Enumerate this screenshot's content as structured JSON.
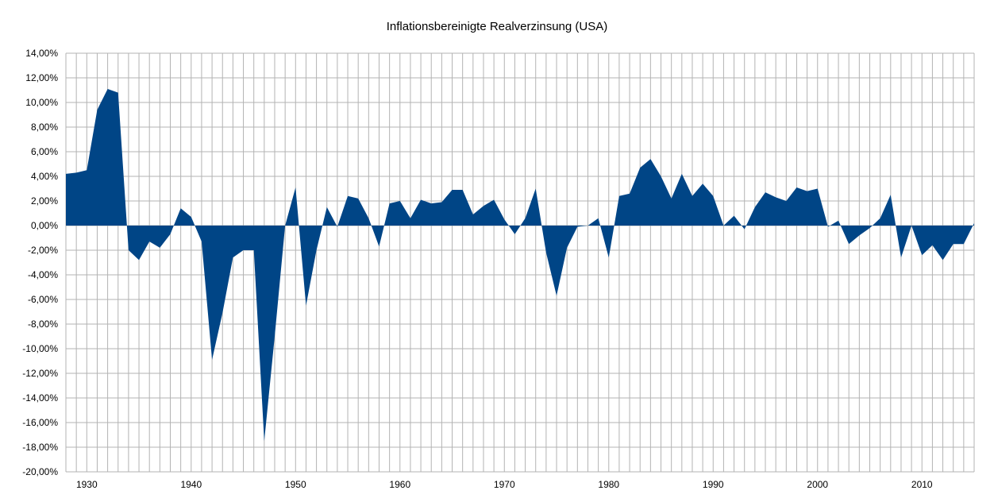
{
  "chart_data": {
    "type": "area",
    "title": "Inflationsbereinigte Realverzinsung (USA)",
    "xlabel": "",
    "ylabel": "",
    "ylim": [
      -0.2,
      0.14
    ],
    "xlim": [
      1928,
      2015
    ],
    "y_ticks": [
      0.14,
      0.12,
      0.1,
      0.08,
      0.06,
      0.04,
      0.02,
      0.0,
      -0.02,
      -0.04,
      -0.06,
      -0.08,
      -0.1,
      -0.12,
      -0.14,
      -0.16,
      -0.18,
      -0.2
    ],
    "y_tick_labels": [
      "14,00%",
      "12,00%",
      "10,00%",
      "8,00%",
      "6,00%",
      "4,00%",
      "2,00%",
      "0,00%",
      "-2,00%",
      "-4,00%",
      "-6,00%",
      "-8,00%",
      "-10,00%",
      "-12,00%",
      "-14,00%",
      "-16,00%",
      "-18,00%",
      "-20,00%"
    ],
    "x_ticks": [
      1930,
      1940,
      1950,
      1960,
      1970,
      1980,
      1990,
      2000,
      2010
    ],
    "x_tick_labels": [
      "1930",
      "1940",
      "1950",
      "1960",
      "1970",
      "1980",
      "1990",
      "2000",
      "2010"
    ],
    "grid": true,
    "series_color": "#004586",
    "x": [
      1928,
      1929,
      1930,
      1931,
      1932,
      1933,
      1934,
      1935,
      1936,
      1937,
      1938,
      1939,
      1940,
      1941,
      1942,
      1943,
      1944,
      1945,
      1946,
      1947,
      1948,
      1949,
      1950,
      1951,
      1952,
      1953,
      1954,
      1955,
      1956,
      1957,
      1958,
      1959,
      1960,
      1961,
      1962,
      1963,
      1964,
      1965,
      1966,
      1967,
      1968,
      1969,
      1970,
      1971,
      1972,
      1973,
      1974,
      1975,
      1976,
      1977,
      1978,
      1979,
      1980,
      1981,
      1982,
      1983,
      1984,
      1985,
      1986,
      1987,
      1988,
      1989,
      1990,
      1991,
      1992,
      1993,
      1994,
      1995,
      1996,
      1997,
      1998,
      1999,
      2000,
      2001,
      2002,
      2003,
      2004,
      2005,
      2006,
      2007,
      2008,
      2009,
      2010,
      2011,
      2012,
      2013,
      2014,
      2015
    ],
    "values": [
      0.042,
      0.043,
      0.045,
      0.094,
      0.111,
      0.108,
      -0.02,
      -0.028,
      -0.013,
      -0.018,
      -0.007,
      0.014,
      0.007,
      -0.013,
      -0.109,
      -0.071,
      -0.026,
      -0.02,
      -0.02,
      -0.175,
      -0.09,
      0.0,
      0.031,
      -0.065,
      -0.02,
      0.015,
      -0.001,
      0.024,
      0.022,
      0.006,
      -0.017,
      0.018,
      0.02,
      0.006,
      0.021,
      0.018,
      0.019,
      0.029,
      0.029,
      0.009,
      0.016,
      0.021,
      0.005,
      -0.007,
      0.006,
      0.03,
      -0.022,
      -0.057,
      -0.018,
      -0.001,
      0.0,
      0.006,
      -0.026,
      0.024,
      0.026,
      0.047,
      0.054,
      0.04,
      0.022,
      0.042,
      0.024,
      0.034,
      0.024,
      0.0,
      0.008,
      -0.003,
      0.015,
      0.027,
      0.023,
      0.02,
      0.031,
      0.028,
      0.03,
      -0.001,
      0.004,
      -0.015,
      -0.008,
      -0.002,
      0.006,
      0.025,
      -0.026,
      0.0,
      -0.024,
      -0.016,
      -0.028,
      -0.015,
      -0.015,
      0.002
    ]
  }
}
